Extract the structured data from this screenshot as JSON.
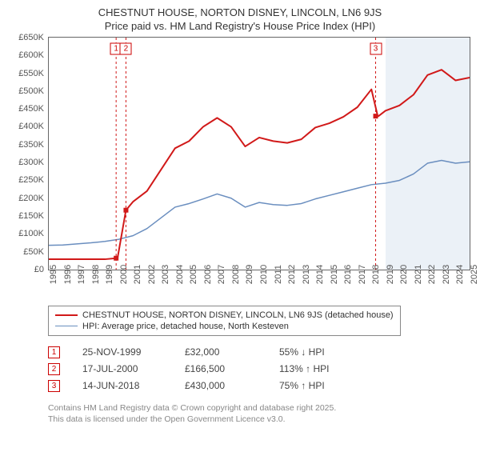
{
  "title": "CHESTNUT HOUSE, NORTON DISNEY, LINCOLN, LN6 9JS",
  "subtitle": "Price paid vs. HM Land Registry's House Price Index (HPI)",
  "chart": {
    "type": "line",
    "x_years": [
      1995,
      1996,
      1997,
      1998,
      1999,
      2000,
      2001,
      2002,
      2003,
      2004,
      2005,
      2006,
      2007,
      2008,
      2009,
      2010,
      2011,
      2012,
      2013,
      2014,
      2015,
      2016,
      2017,
      2018,
      2019,
      2020,
      2021,
      2022,
      2023,
      2024,
      2025
    ],
    "ylim": [
      0,
      650000
    ],
    "ytick_step": 50000,
    "ytick_labels": [
      "£0",
      "£50K",
      "£100K",
      "£150K",
      "£200K",
      "£250K",
      "£300K",
      "£350K",
      "£400K",
      "£450K",
      "£500K",
      "£550K",
      "£600K",
      "£650K"
    ],
    "plot_border_color": "#666666",
    "background_color": "#ffffff",
    "forecast_start_year": 2019,
    "forecast_band_color": "rgba(120,160,200,0.15)",
    "series": {
      "house": {
        "label": "CHESTNUT HOUSE, NORTON DISNEY, LINCOLN, LN6 9JS (detached house)",
        "color": "#d11919",
        "width": 2,
        "points": [
          [
            1995,
            29000
          ],
          [
            1996,
            29000
          ],
          [
            1997,
            29000
          ],
          [
            1998,
            29000
          ],
          [
            1999,
            29000
          ],
          [
            1999.8,
            32000
          ],
          [
            1999.9,
            32000
          ],
          [
            2000.5,
            166500
          ],
          [
            2001,
            190000
          ],
          [
            2002,
            220000
          ],
          [
            2003,
            280000
          ],
          [
            2004,
            340000
          ],
          [
            2005,
            360000
          ],
          [
            2006,
            400000
          ],
          [
            2007,
            425000
          ],
          [
            2008,
            400000
          ],
          [
            2009,
            345000
          ],
          [
            2010,
            370000
          ],
          [
            2011,
            360000
          ],
          [
            2012,
            355000
          ],
          [
            2013,
            365000
          ],
          [
            2014,
            398000
          ],
          [
            2015,
            410000
          ],
          [
            2016,
            428000
          ],
          [
            2017,
            455000
          ],
          [
            2018,
            505000
          ],
          [
            2018.45,
            430000
          ],
          [
            2018.5,
            430000
          ],
          [
            2019,
            445000
          ],
          [
            2020,
            460000
          ],
          [
            2021,
            490000
          ],
          [
            2022,
            545000
          ],
          [
            2023,
            560000
          ],
          [
            2023.5,
            545000
          ],
          [
            2024,
            530000
          ],
          [
            2025,
            538000
          ]
        ]
      },
      "hpi": {
        "label": "HPI: Average price, detached house, North Kesteven",
        "color": "#6a8ebf",
        "width": 1.5,
        "points": [
          [
            1995,
            68000
          ],
          [
            1996,
            69000
          ],
          [
            1997,
            72000
          ],
          [
            1998,
            75000
          ],
          [
            1999,
            79000
          ],
          [
            2000,
            85000
          ],
          [
            2001,
            95000
          ],
          [
            2002,
            115000
          ],
          [
            2003,
            145000
          ],
          [
            2004,
            175000
          ],
          [
            2005,
            185000
          ],
          [
            2006,
            198000
          ],
          [
            2007,
            212000
          ],
          [
            2008,
            200000
          ],
          [
            2009,
            175000
          ],
          [
            2010,
            188000
          ],
          [
            2011,
            182000
          ],
          [
            2012,
            180000
          ],
          [
            2013,
            185000
          ],
          [
            2014,
            198000
          ],
          [
            2015,
            208000
          ],
          [
            2016,
            218000
          ],
          [
            2017,
            228000
          ],
          [
            2018,
            238000
          ],
          [
            2019,
            242000
          ],
          [
            2020,
            250000
          ],
          [
            2021,
            268000
          ],
          [
            2022,
            298000
          ],
          [
            2023,
            306000
          ],
          [
            2024,
            298000
          ],
          [
            2025,
            302000
          ]
        ]
      }
    },
    "markers": [
      {
        "n": "1",
        "year": 1999.8,
        "y_top": 14
      },
      {
        "n": "2",
        "year": 2000.5,
        "y_top": 14
      },
      {
        "n": "3",
        "year": 2018.3,
        "y_top": 14
      }
    ]
  },
  "legend": [
    {
      "color": "#d11919",
      "width": 2,
      "label": "CHESTNUT HOUSE, NORTON DISNEY, LINCOLN, LN6 9JS (detached house)"
    },
    {
      "color": "#6a8ebf",
      "width": 1.5,
      "label": "HPI: Average price, detached house, North Kesteven"
    }
  ],
  "sales": [
    {
      "n": "1",
      "date": "25-NOV-1999",
      "price": "£32,000",
      "diff": "55% ↓ HPI"
    },
    {
      "n": "2",
      "date": "17-JUL-2000",
      "price": "£166,500",
      "diff": "113% ↑ HPI"
    },
    {
      "n": "3",
      "date": "14-JUN-2018",
      "price": "£430,000",
      "diff": "75% ↑ HPI"
    }
  ],
  "footer_line1": "Contains HM Land Registry data © Crown copyright and database right 2025.",
  "footer_line2": "This data is licensed under the Open Government Licence v3.0.",
  "marker_border_color": "#cc0000"
}
